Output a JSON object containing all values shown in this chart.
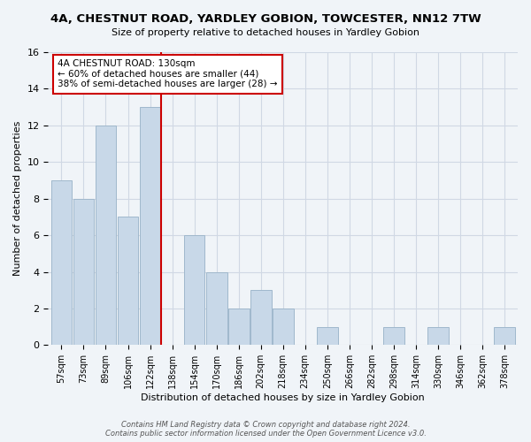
{
  "title": "4A, CHESTNUT ROAD, YARDLEY GOBION, TOWCESTER, NN12 7TW",
  "subtitle": "Size of property relative to detached houses in Yardley Gobion",
  "xlabel": "Distribution of detached houses by size in Yardley Gobion",
  "ylabel": "Number of detached properties",
  "bin_labels": [
    "57sqm",
    "73sqm",
    "89sqm",
    "106sqm",
    "122sqm",
    "138sqm",
    "154sqm",
    "170sqm",
    "186sqm",
    "202sqm",
    "218sqm",
    "234sqm",
    "250sqm",
    "266sqm",
    "282sqm",
    "298sqm",
    "314sqm",
    "330sqm",
    "346sqm",
    "362sqm",
    "378sqm"
  ],
  "bar_heights": [
    9,
    8,
    12,
    7,
    13,
    0,
    6,
    4,
    2,
    3,
    2,
    0,
    1,
    0,
    0,
    1,
    0,
    1,
    0,
    0,
    1
  ],
  "bar_color": "#c8d8e8",
  "bar_edge_color": "#a0b8cc",
  "vline_x_index": 4.5,
  "vline_color": "#cc0000",
  "annotation_line1": "4A CHESTNUT ROAD: 130sqm",
  "annotation_line2": "← 60% of detached houses are smaller (44)",
  "annotation_line3": "38% of semi-detached houses are larger (28) →",
  "annotation_box_color": "#ffffff",
  "annotation_box_edge_color": "#cc0000",
  "ylim": [
    0,
    16
  ],
  "yticks": [
    0,
    2,
    4,
    6,
    8,
    10,
    12,
    14,
    16
  ],
  "footer": "Contains HM Land Registry data © Crown copyright and database right 2024.\nContains public sector information licensed under the Open Government Licence v3.0.",
  "grid_color": "#d0d8e4",
  "background_color": "#f0f4f8"
}
